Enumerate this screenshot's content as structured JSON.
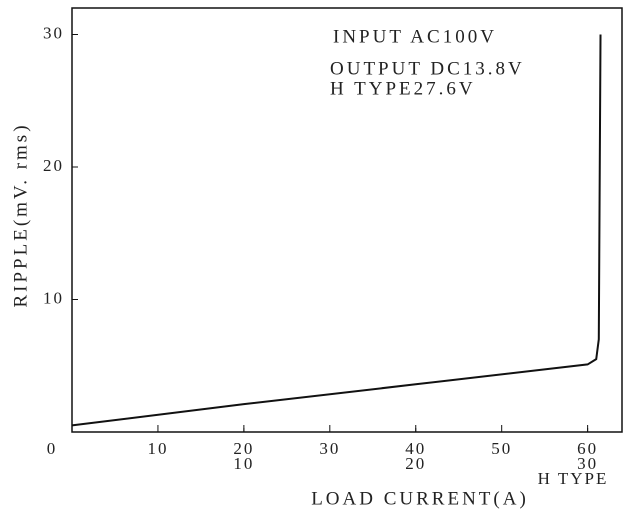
{
  "chart_data": {
    "type": "line",
    "xlabel": "LOAD CURRENT(A)",
    "ylabel": "RIPPLE(mV. rms)",
    "annotations": [
      "INPUT AC100V",
      "OUTPUT DC13.8V",
      "H TYPE27.6V"
    ],
    "x": [
      0,
      20,
      40,
      60,
      61,
      61.3,
      61.5
    ],
    "series": [
      {
        "name": "ripple",
        "color": "#111111",
        "values": [
          0.5,
          2.1,
          3.6,
          5.1,
          5.5,
          7,
          30
        ]
      }
    ],
    "xlim": [
      0,
      64
    ],
    "xticks": [
      0,
      10,
      20,
      30,
      40,
      50,
      60
    ],
    "x2ticks": [
      {
        "value": 20,
        "label": "10"
      },
      {
        "value": 40,
        "label": "20"
      },
      {
        "value": 60,
        "label": "30"
      }
    ],
    "x2label": "H TYPE",
    "ylim": [
      0,
      32
    ],
    "yticks": [
      10,
      20,
      30
    ],
    "grid": false
  }
}
